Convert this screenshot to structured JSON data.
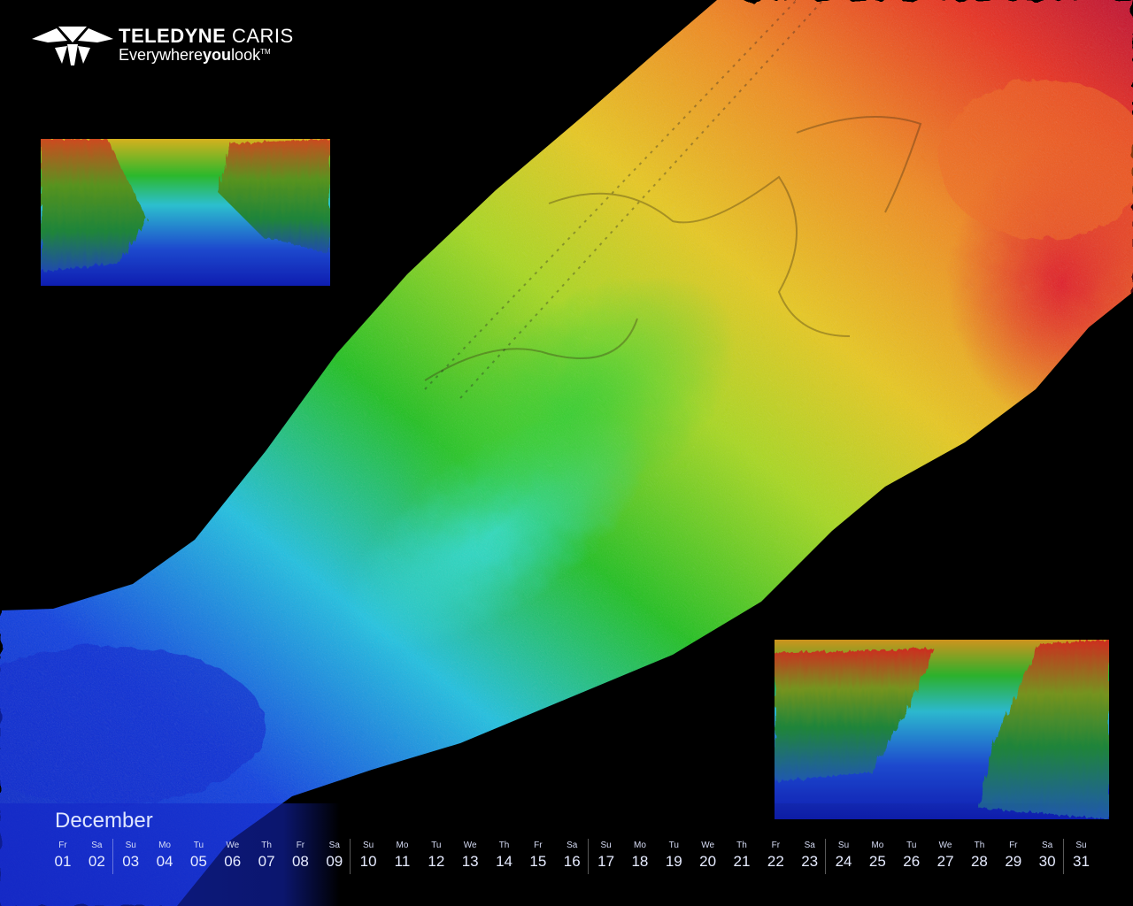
{
  "brand": {
    "name_bold": "TELEDYNE",
    "name_light": " CARIS",
    "tagline_pre": "Everywhere",
    "tagline_bold": "you",
    "tagline_post": "look",
    "tagline_mark": "TM"
  },
  "calendar": {
    "month": "December",
    "days": [
      {
        "wd": "Fr",
        "d": "01"
      },
      {
        "wd": "Sa",
        "d": "02"
      },
      {
        "wd": "Su",
        "d": "03"
      },
      {
        "wd": "Mo",
        "d": "04"
      },
      {
        "wd": "Tu",
        "d": "05"
      },
      {
        "wd": "We",
        "d": "06"
      },
      {
        "wd": "Th",
        "d": "07"
      },
      {
        "wd": "Fr",
        "d": "08"
      },
      {
        "wd": "Sa",
        "d": "09"
      },
      {
        "wd": "Su",
        "d": "10"
      },
      {
        "wd": "Mo",
        "d": "11"
      },
      {
        "wd": "Tu",
        "d": "12"
      },
      {
        "wd": "We",
        "d": "13"
      },
      {
        "wd": "Th",
        "d": "14"
      },
      {
        "wd": "Fr",
        "d": "15"
      },
      {
        "wd": "Sa",
        "d": "16"
      },
      {
        "wd": "Su",
        "d": "17"
      },
      {
        "wd": "Mo",
        "d": "18"
      },
      {
        "wd": "Tu",
        "d": "19"
      },
      {
        "wd": "We",
        "d": "20"
      },
      {
        "wd": "Th",
        "d": "21"
      },
      {
        "wd": "Fr",
        "d": "22"
      },
      {
        "wd": "Sa",
        "d": "23"
      },
      {
        "wd": "Su",
        "d": "24"
      },
      {
        "wd": "Mo",
        "d": "25"
      },
      {
        "wd": "Tu",
        "d": "26"
      },
      {
        "wd": "We",
        "d": "27"
      },
      {
        "wd": "Th",
        "d": "28"
      },
      {
        "wd": "Fr",
        "d": "29"
      },
      {
        "wd": "Sa",
        "d": "30"
      },
      {
        "wd": "Su",
        "d": "31"
      }
    ]
  },
  "colors": {
    "depth_deep": "#1030d0",
    "depth_cyan": "#20c8e0",
    "depth_green": "#20c020",
    "depth_yellow": "#e8d820",
    "depth_orange": "#f08020",
    "depth_red": "#e02020",
    "background": "#000000"
  }
}
